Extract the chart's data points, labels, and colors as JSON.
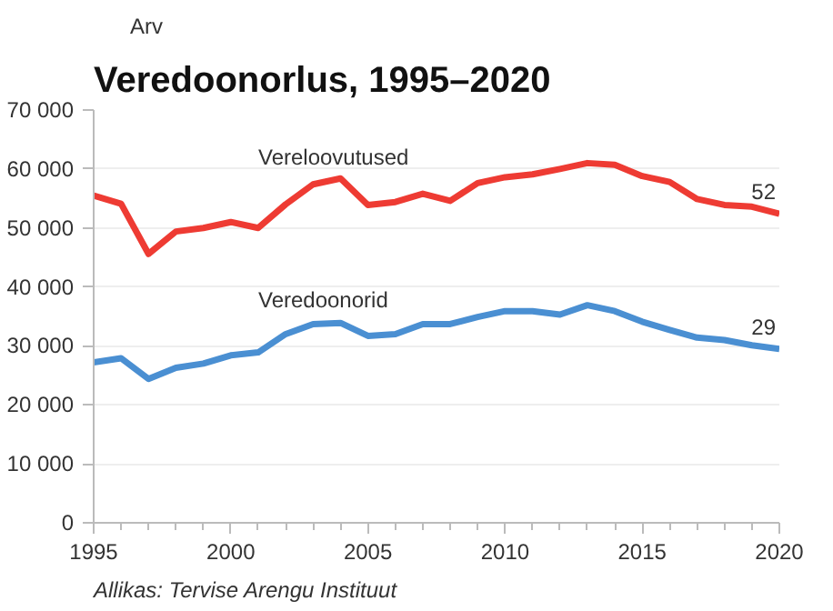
{
  "chart_data": {
    "type": "line",
    "title": "Veredoonorlus, 1995–2020",
    "ylabel": "Arv",
    "x": [
      1995,
      1996,
      1997,
      1998,
      1999,
      2000,
      2001,
      2002,
      2003,
      2004,
      2005,
      2006,
      2007,
      2008,
      2009,
      2010,
      2011,
      2012,
      2013,
      2014,
      2015,
      2016,
      2017,
      2018,
      2019,
      2020
    ],
    "series": [
      {
        "name": "Vereloovutused",
        "color": "#ee3b33",
        "values": [
          55500,
          54100,
          45600,
          49400,
          50000,
          51000,
          50000,
          54000,
          57400,
          58400,
          53900,
          54400,
          55800,
          54600,
          57600,
          58600,
          59100,
          60000,
          61000,
          60700,
          58800,
          57800,
          54900,
          53900,
          53600,
          52400
        ]
      },
      {
        "name": "Veredoonorid",
        "color": "#4a8fd2",
        "values": [
          27200,
          27900,
          24400,
          26300,
          27000,
          28400,
          28900,
          32000,
          33700,
          33900,
          31700,
          32000,
          33700,
          33700,
          34900,
          35900,
          35900,
          35300,
          36900,
          35900,
          34100,
          32700,
          31400,
          31000,
          30100,
          29500
        ]
      }
    ],
    "xlim": [
      1995,
      2020
    ],
    "xticks": [
      1995,
      {
        "value": 1996,
        "label": null
      },
      {
        "value": 1997,
        "label": null
      },
      {
        "value": 1998,
        "label": null
      },
      {
        "value": 1999,
        "label": null
      },
      2000,
      {
        "value": 2001,
        "label": null
      },
      {
        "value": 2002,
        "label": null
      },
      {
        "value": 2003,
        "label": null
      },
      {
        "value": 2004,
        "label": null
      },
      2005,
      {
        "value": 2006,
        "label": null
      },
      {
        "value": 2007,
        "label": null
      },
      {
        "value": 2008,
        "label": null
      },
      {
        "value": 2009,
        "label": null
      },
      2010,
      {
        "value": 2011,
        "label": null
      },
      {
        "value": 2012,
        "label": null
      },
      {
        "value": 2013,
        "label": null
      },
      {
        "value": 2014,
        "label": null
      },
      2015,
      {
        "value": 2016,
        "label": null
      },
      {
        "value": 2017,
        "label": null
      },
      {
        "value": 2018,
        "label": null
      },
      {
        "value": 2019,
        "label": null
      },
      2020
    ],
    "ylim": [
      0,
      70000
    ],
    "yticks": [
      0,
      {
        "value": 10000,
        "label": "10 000"
      },
      {
        "value": 20000,
        "label": "20 000"
      },
      {
        "value": 30000,
        "label": "30 000"
      },
      {
        "value": 40000,
        "label": "40 000"
      },
      {
        "value": 50000,
        "label": "50 000"
      },
      {
        "value": 60000,
        "label": "60 000"
      },
      {
        "value": 70000,
        "label": "70 000"
      }
    ],
    "grid": "y",
    "marker": "none",
    "line_style": "solid",
    "annotations": [
      {
        "text": "52",
        "x": 2020,
        "y": 52400
      },
      {
        "text": "29",
        "x": 2020,
        "y": 29500
      },
      "Allikas: Tervise Arengu Instituut"
    ]
  }
}
